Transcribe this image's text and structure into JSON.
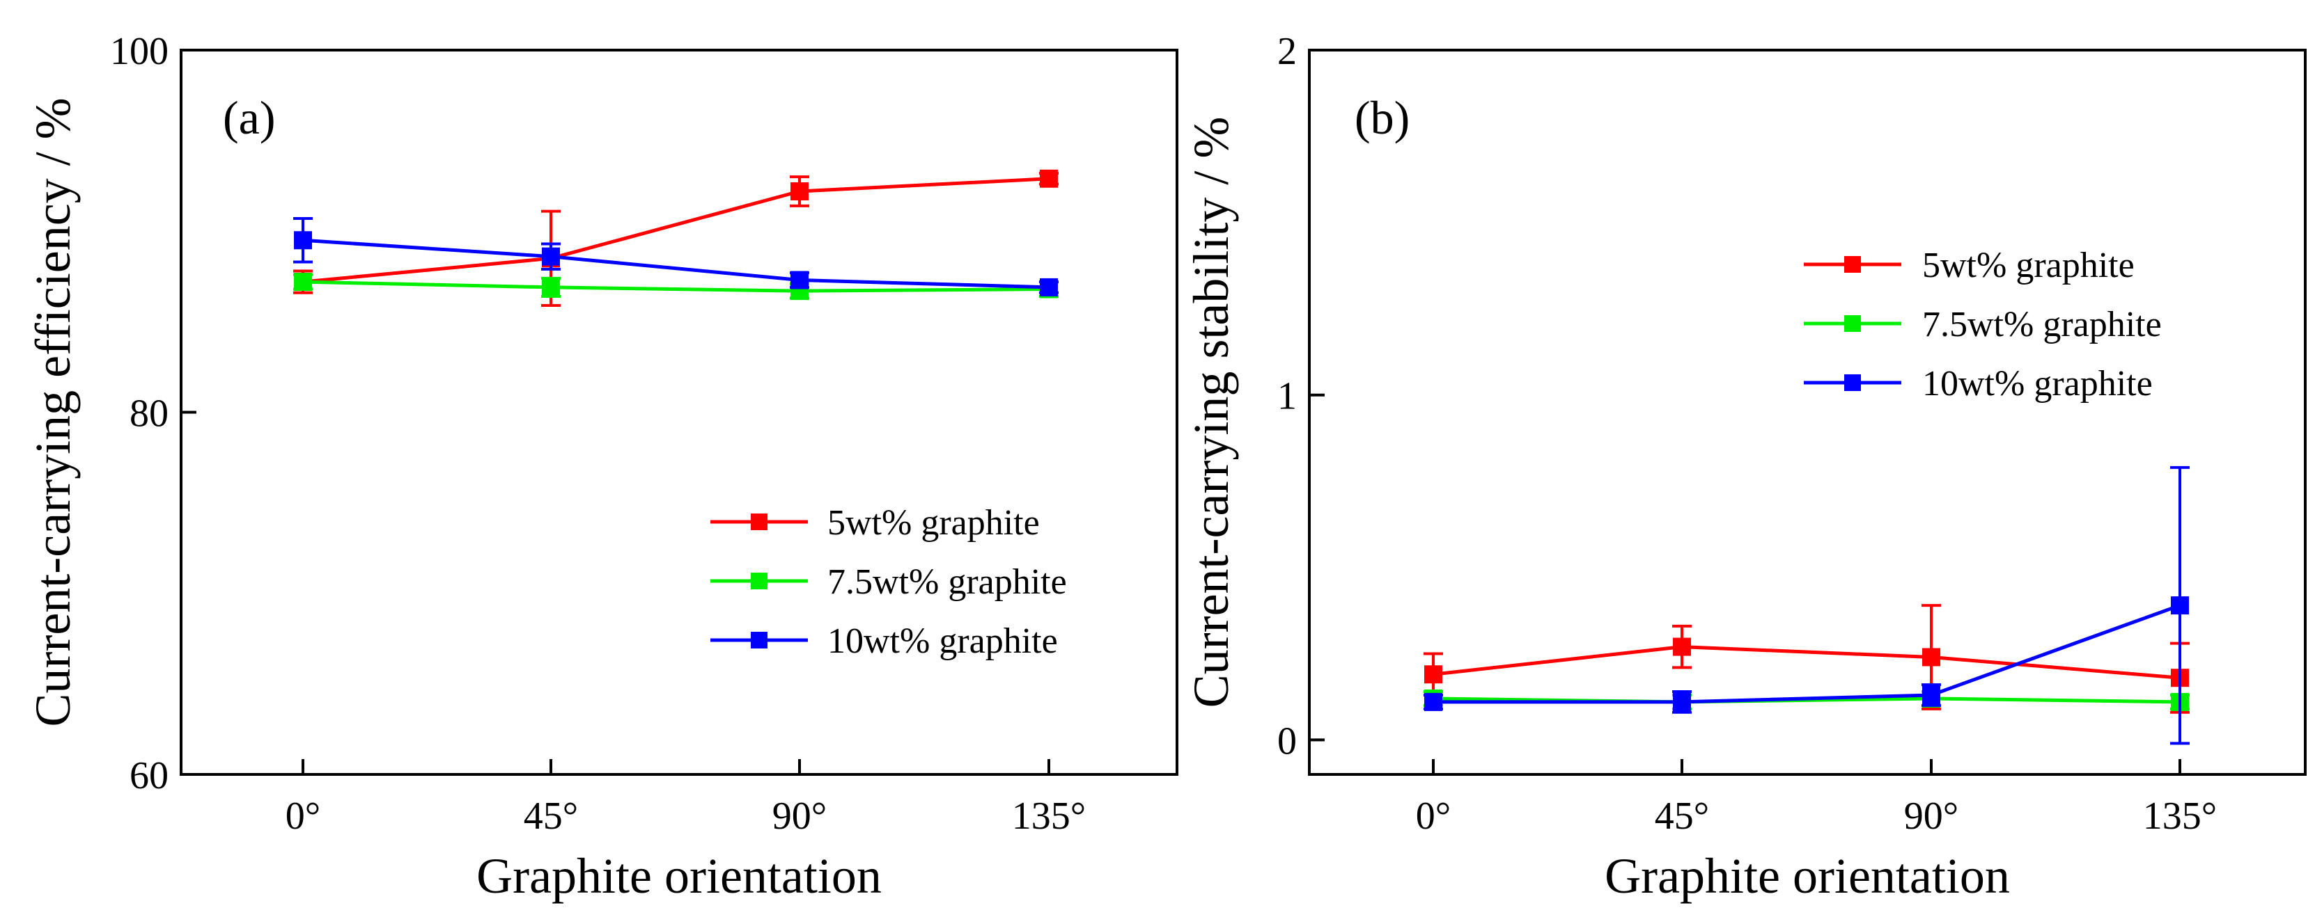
{
  "chart_data": [
    {
      "type": "line",
      "panel_label": "(a)",
      "xlabel": "Graphite orientation",
      "ylabel": "Current-carrying efficiency / %",
      "categories": [
        "0°",
        "45°",
        "90°",
        "135°"
      ],
      "ylim": [
        60,
        100
      ],
      "yticks": [
        60,
        80,
        100
      ],
      "legend_position": "lower-right",
      "series": [
        {
          "name": "5wt% graphite",
          "color": "#ff0000",
          "values": [
            87.2,
            88.5,
            92.2,
            92.9
          ],
          "errors": [
            0.6,
            2.6,
            0.8,
            0.3
          ]
        },
        {
          "name": "7.5wt% graphite",
          "color": "#00ee00",
          "values": [
            87.2,
            86.9,
            86.7,
            86.8
          ],
          "errors": [
            0.4,
            0.5,
            0.4,
            0.4
          ]
        },
        {
          "name": "10wt% graphite",
          "color": "#0000ff",
          "values": [
            89.5,
            88.6,
            87.3,
            86.9
          ],
          "errors": [
            1.2,
            0.7,
            0.4,
            0.3
          ]
        }
      ]
    },
    {
      "type": "line",
      "panel_label": "(b)",
      "xlabel": "Graphite orientation",
      "ylabel": "Current-carrying stability / %",
      "categories": [
        "0°",
        "45°",
        "90°",
        "135°"
      ],
      "ylim": [
        -0.1,
        2
      ],
      "yticks": [
        0,
        1,
        2
      ],
      "legend_position": "upper-right",
      "series": [
        {
          "name": "5wt% graphite",
          "color": "#ff0000",
          "values": [
            0.19,
            0.27,
            0.24,
            0.18
          ],
          "errors": [
            0.06,
            0.06,
            0.15,
            0.1
          ]
        },
        {
          "name": "7.5wt% graphite",
          "color": "#00ee00",
          "values": [
            0.12,
            0.11,
            0.12,
            0.11
          ],
          "errors": [
            0.02,
            0.02,
            0.02,
            0.02
          ]
        },
        {
          "name": "10wt% graphite",
          "color": "#0000ff",
          "values": [
            0.11,
            0.11,
            0.13,
            0.39
          ],
          "errors": [
            0.02,
            0.03,
            0.03,
            0.4
          ]
        }
      ]
    }
  ]
}
